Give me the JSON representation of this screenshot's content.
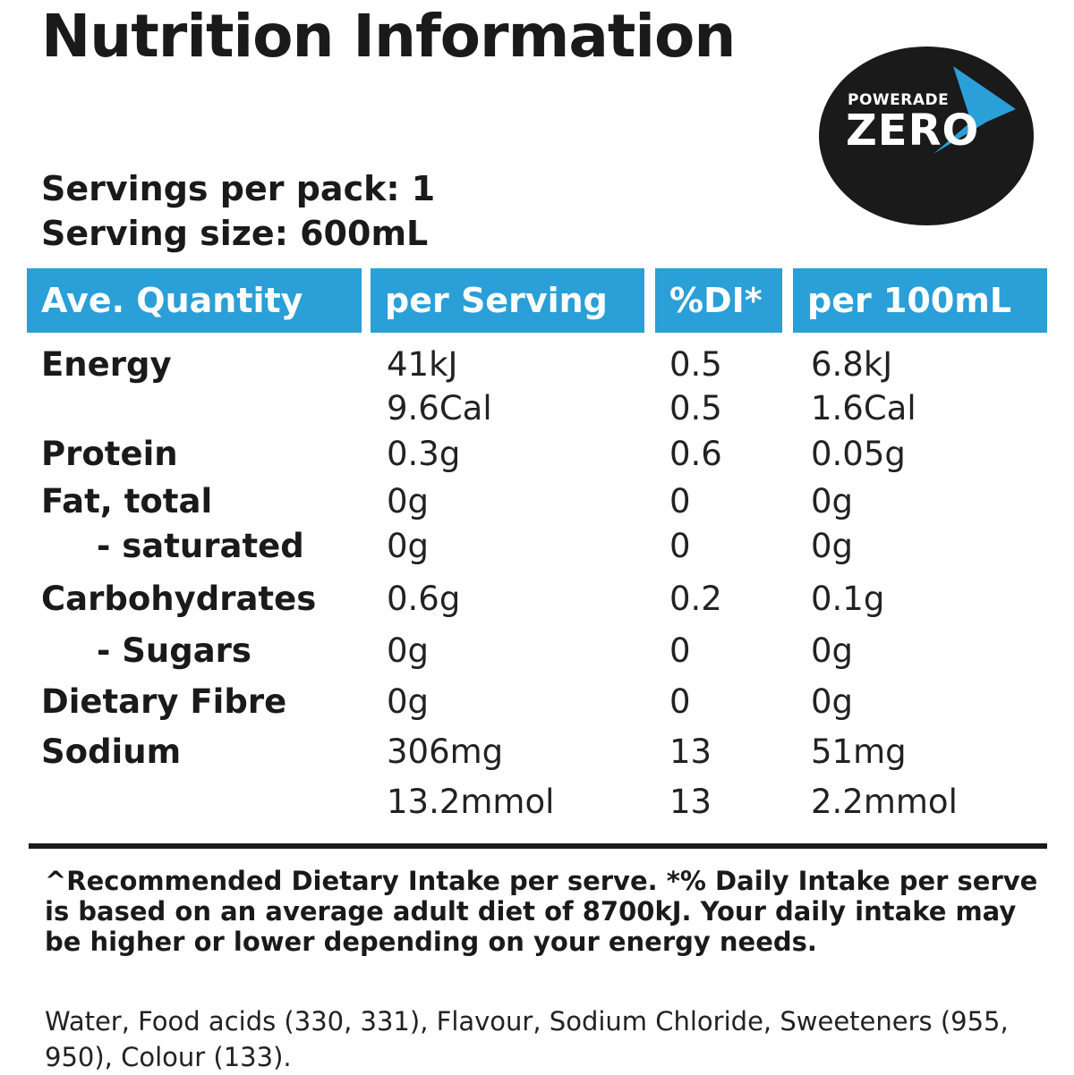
{
  "title": "Nutrition Information",
  "logo": {
    "brand": "POWERADE",
    "sub": "ZERO",
    "accent": "#2a9fd8",
    "background": "#1a1a1a"
  },
  "servings_per_pack": "Servings per pack: 1",
  "serving_size": "Serving size: 600mL",
  "header": {
    "quantity": "Ave. Quantity",
    "per_serving": "per Serving",
    "di": "%DI*",
    "per_100": "per 100mL",
    "color": "#2a9fd8"
  },
  "rows": [
    {
      "label": "Energy",
      "serving": "41kJ",
      "di": "0.5",
      "per100": "6.8kJ"
    },
    {
      "label": "",
      "serving": "9.6Cal",
      "di": "0.5",
      "per100": "1.6Cal"
    },
    {
      "label": "Protein",
      "serving": "0.3g",
      "di": "0.6",
      "per100": "0.05g"
    },
    {
      "label": "Fat, total",
      "serving": "0g",
      "di": "0",
      "per100": "0g"
    },
    {
      "label": "- saturated",
      "serving": "0g",
      "di": "0",
      "per100": "0g"
    },
    {
      "label": "Carbohydrates",
      "serving": "0.6g",
      "di": "0.2",
      "per100": "0.1g"
    },
    {
      "label": "- Sugars",
      "serving": "0g",
      "di": "0",
      "per100": "0g"
    },
    {
      "label": "Dietary Fibre",
      "serving": "0g",
      "di": "0",
      "per100": "0g"
    },
    {
      "label": "Sodium",
      "serving": "306mg",
      "di": "13",
      "per100": "51mg"
    },
    {
      "label": "",
      "serving": "13.2mmol",
      "di": "13",
      "per100": "2.2mmol"
    }
  ],
  "footnote": "^Recommended Dietary Intake per serve. *% Daily Intake per serve is based on an average adult diet of 8700kJ. Your daily intake may be higher or lower depending on your energy needs.",
  "ingredients": "Water, Food acids (330, 331), Flavour, Sodium Chloride, Sweeteners (955, 950), Colour (133)."
}
